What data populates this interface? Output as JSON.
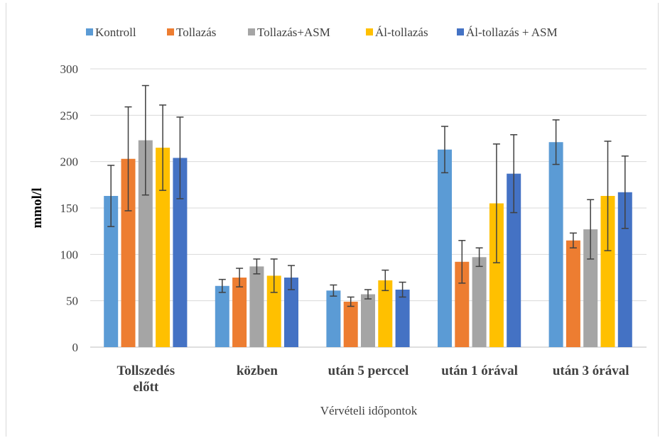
{
  "chart_data": {
    "type": "bar",
    "xlabel": "Vérvételi időpontok",
    "ylabel": "mmol/l",
    "ylim": [
      0,
      300
    ],
    "yticks": [
      0,
      50,
      100,
      150,
      200,
      250,
      300
    ],
    "grid": true,
    "legend_position": "top",
    "error_bars": true,
    "categories": [
      [
        "Tollszedés",
        "előtt"
      ],
      [
        "közben"
      ],
      [
        "után 5 perccel"
      ],
      [
        "után 1 órával"
      ],
      [
        "után 3 órával"
      ]
    ],
    "series": [
      {
        "name": "Kontroll",
        "color": "#5b9bd5",
        "values": [
          163,
          66,
          61,
          213,
          221
        ],
        "error": [
          33,
          7,
          6,
          25,
          24
        ]
      },
      {
        "name": "Tollazás",
        "color": "#ed7d31",
        "values": [
          203,
          75,
          49,
          92,
          115
        ],
        "error": [
          56,
          10,
          5,
          23,
          8
        ]
      },
      {
        "name": "Tollazás+ASM",
        "color": "#a5a5a5",
        "values": [
          223,
          87,
          57,
          97,
          127
        ],
        "error": [
          59,
          8,
          5,
          10,
          32
        ]
      },
      {
        "name": "Ál-tollazás",
        "color": "#ffc000",
        "values": [
          215,
          77,
          72,
          155,
          163
        ],
        "error": [
          46,
          18,
          11,
          64,
          59
        ]
      },
      {
        "name": "Ál-tollazás + ASM",
        "color": "#4472c4",
        "values": [
          204,
          75,
          62,
          187,
          167
        ],
        "error": [
          44,
          13,
          8,
          42,
          39
        ]
      }
    ]
  }
}
